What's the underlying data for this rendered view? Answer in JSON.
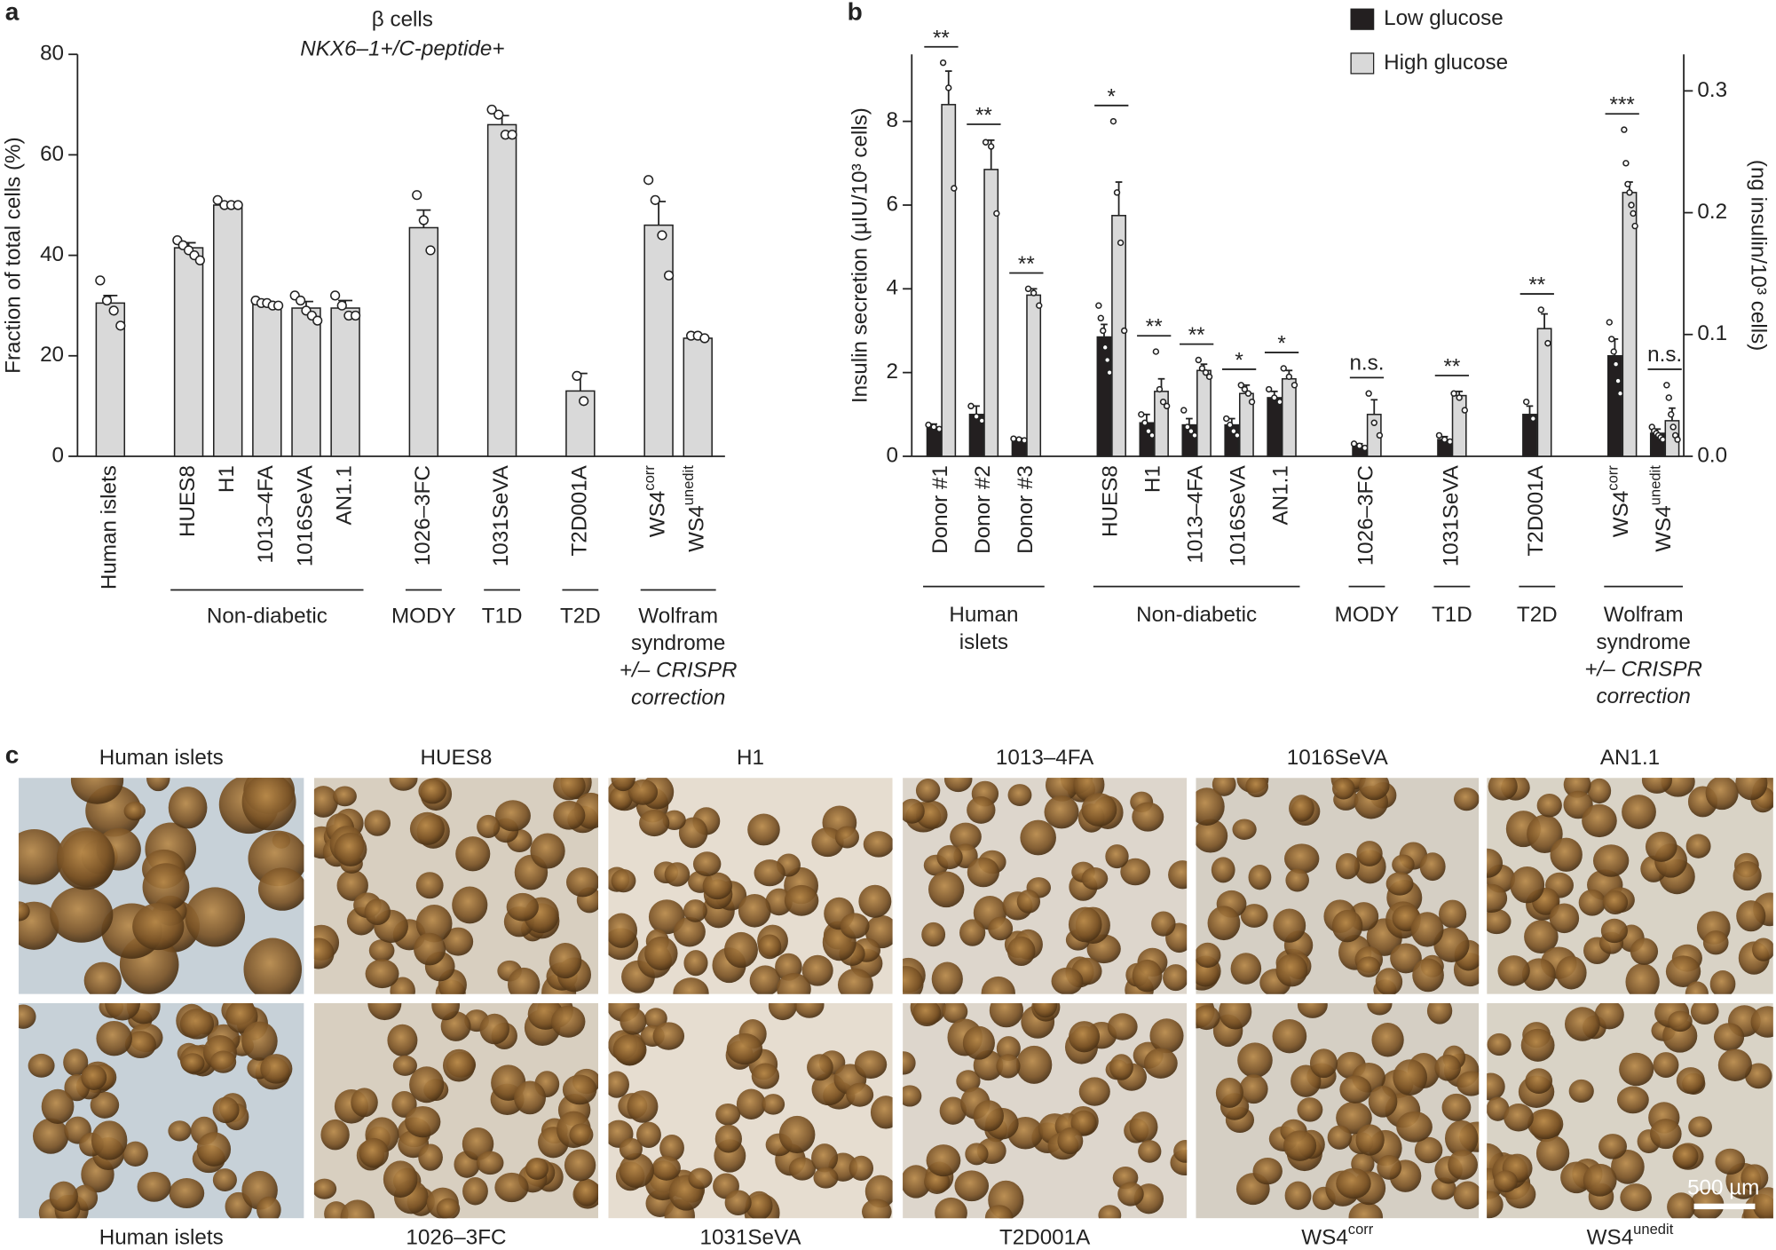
{
  "chart_data": [
    {
      "type": "bar",
      "panel": "a",
      "title": "β cells",
      "subtitle": "NKX6–1+/C-peptide+",
      "ylabel": "Fraction of total cells (%)",
      "categories": [
        "Human islets",
        null,
        "HUES8",
        "H1",
        "1013–4FA",
        "1016SeVA",
        "AN1.1",
        null,
        "1026–3FC",
        null,
        "1031SeVA",
        null,
        "T2D001A",
        null,
        "WS4",
        "WS4"
      ],
      "category_superscripts": [
        null,
        null,
        null,
        null,
        null,
        null,
        null,
        null,
        null,
        null,
        null,
        null,
        null,
        null,
        "corr",
        "unedit"
      ],
      "values": [
        30.5,
        null,
        41.5,
        50,
        30.5,
        29.5,
        29.5,
        null,
        45.5,
        null,
        66,
        null,
        13,
        null,
        46,
        23.5
      ],
      "errors": [
        1.5,
        null,
        1,
        0.5,
        0.3,
        1.3,
        1.5,
        null,
        3.5,
        null,
        1.8,
        null,
        3.5,
        null,
        4.7,
        0.4
      ],
      "points": [
        [
          35,
          31,
          29,
          26
        ],
        null,
        [
          43,
          42,
          41,
          40,
          39
        ],
        [
          51,
          50,
          50,
          50
        ],
        [
          31,
          30.5,
          30.5,
          30,
          30
        ],
        [
          32,
          31,
          29,
          28,
          27
        ],
        [
          32,
          30,
          28,
          28
        ],
        null,
        [
          52,
          47,
          41
        ],
        null,
        [
          69,
          68,
          64,
          64
        ],
        null,
        [
          16,
          11
        ],
        null,
        [
          55,
          51,
          44,
          36
        ],
        [
          24,
          24,
          23.5
        ]
      ],
      "color": "#d9d9d9",
      "groups": [
        {
          "members": [
            2,
            3,
            4,
            5,
            6
          ],
          "lines": [
            "Non-diabetic"
          ]
        },
        {
          "members": [
            8
          ],
          "lines": [
            "MODY"
          ]
        },
        {
          "members": [
            10
          ],
          "lines": [
            "T1D"
          ]
        },
        {
          "members": [
            12
          ],
          "lines": [
            "T2D"
          ]
        },
        {
          "members": [
            14,
            15
          ],
          "lines": [
            "Wolfram",
            "syndrome",
            "+/– CRISPR",
            "correction"
          ]
        }
      ],
      "ylim": [
        0,
        80
      ],
      "yticks": [
        0,
        20,
        40,
        60,
        80
      ]
    },
    {
      "type": "bar",
      "panel": "b",
      "ylabel": "Insulin secretion (µIU/10³ cells)",
      "y2label": "(ng insulin/10³ cells)",
      "categories": [
        "Donor #1",
        "Donor #2",
        "Donor #3",
        null,
        "HUES8",
        "H1",
        "1013–4FA",
        "1016SeVA",
        "AN1.1",
        null,
        "1026–3FC",
        null,
        "1031SeVA",
        null,
        "T2D001A",
        null,
        "WS4",
        "WS4"
      ],
      "category_superscripts": [
        null,
        null,
        null,
        null,
        null,
        null,
        null,
        null,
        null,
        null,
        null,
        null,
        null,
        null,
        null,
        null,
        "corr",
        "unedit"
      ],
      "series": [
        {
          "name": "Low glucose",
          "color": "#231f20",
          "values": [
            0.7,
            1.0,
            0.4,
            null,
            2.85,
            0.8,
            0.75,
            0.75,
            1.4,
            null,
            0.25,
            null,
            0.4,
            null,
            1.0,
            null,
            2.4,
            0.55
          ],
          "errors": [
            0.07,
            0.2,
            0.03,
            null,
            0.3,
            0.2,
            0.15,
            0.15,
            0.15,
            null,
            0.05,
            null,
            0.07,
            null,
            0.2,
            null,
            0.4,
            0.1
          ],
          "points": [
            [
              0.75,
              0.7,
              0.65
            ],
            [
              1.2,
              0.95,
              0.85
            ],
            [
              0.42,
              0.4,
              0.38
            ],
            null,
            [
              3.6,
              3.3,
              3.0,
              2.6,
              2.3,
              2.0
            ],
            [
              1.0,
              0.8,
              0.6,
              0.5
            ],
            [
              1.1,
              0.7,
              0.6,
              0.5
            ],
            [
              0.9,
              0.75,
              0.6,
              0.5
            ],
            [
              1.6,
              1.4,
              1.3
            ],
            null,
            [
              0.3,
              0.25,
              0.2
            ],
            null,
            [
              0.5,
              0.4,
              0.35
            ],
            null,
            [
              1.3,
              0.9
            ],
            null,
            [
              3.2,
              2.8,
              2.5,
              2.2,
              1.8,
              1.5
            ],
            [
              0.7,
              0.6,
              0.55,
              0.5,
              0.45,
              0.4
            ]
          ]
        },
        {
          "name": "High glucose",
          "color": "#d9d9d9",
          "values": [
            8.4,
            6.85,
            3.85,
            null,
            5.75,
            1.55,
            2.05,
            1.5,
            1.85,
            null,
            1.0,
            null,
            1.45,
            null,
            3.05,
            null,
            6.3,
            0.85
          ],
          "errors": [
            0.8,
            0.7,
            0.15,
            null,
            0.8,
            0.3,
            0.15,
            0.2,
            0.2,
            null,
            0.35,
            null,
            0.1,
            null,
            0.35,
            null,
            0.25,
            0.3
          ],
          "points": [
            [
              9.4,
              8.8,
              6.4
            ],
            [
              7.5,
              7.4,
              5.8
            ],
            [
              4.0,
              3.9,
              3.6
            ],
            null,
            [
              8.0,
              6.3,
              5.1,
              3.0
            ],
            [
              2.5,
              1.6,
              1.3,
              1.2
            ],
            [
              2.3,
              2.1,
              2.0,
              1.9
            ],
            [
              1.7,
              1.6,
              1.5,
              1.3
            ],
            [
              2.1,
              1.9,
              1.7
            ],
            null,
            [
              1.5,
              0.8,
              0.5
            ],
            null,
            [
              1.5,
              1.4,
              1.1
            ],
            null,
            [
              3.5,
              2.7
            ],
            null,
            [
              7.8,
              7.0,
              6.5,
              6.3,
              6.0,
              5.8,
              5.5
            ],
            [
              1.7,
              1.4,
              1.0,
              0.7,
              0.5,
              0.4
            ]
          ]
        }
      ],
      "significance": [
        "**",
        "**",
        "**",
        null,
        "*",
        "**",
        "**",
        "*",
        "*",
        null,
        "n.s.",
        null,
        "**",
        null,
        "**",
        null,
        "***",
        "n.s."
      ],
      "groups": [
        {
          "members": [
            0,
            1,
            2
          ],
          "lines": [
            "Human",
            "islets"
          ]
        },
        {
          "members": [
            4,
            5,
            6,
            7,
            8
          ],
          "lines": [
            "Non-diabetic"
          ]
        },
        {
          "members": [
            10
          ],
          "lines": [
            "MODY"
          ]
        },
        {
          "members": [
            12
          ],
          "lines": [
            "T1D"
          ]
        },
        {
          "members": [
            14
          ],
          "lines": [
            "T2D"
          ]
        },
        {
          "members": [
            16,
            17
          ],
          "lines": [
            "Wolfram",
            "syndrome",
            "+/– CRISPR",
            "correction"
          ]
        }
      ],
      "legend": "top",
      "ylim": [
        0,
        9.6
      ],
      "yticks": [
        0,
        2,
        4,
        6,
        8
      ],
      "y2lim": [
        0,
        0.33
      ],
      "y2ticks": [
        {
          "value": 0,
          "label": "0.0"
        },
        {
          "value": 0.1,
          "label": "0.1"
        },
        {
          "value": 0.2,
          "label": "0.2"
        },
        {
          "value": 0.3,
          "label": "0.3"
        }
      ]
    }
  ],
  "images": {
    "panel": "c",
    "top_labels": [
      "Human islets",
      "HUES8",
      "H1",
      "1013–4FA",
      "1016SeVA",
      "AN1.1"
    ],
    "bottom_labels": [
      "Human islets",
      "1026–3FC",
      "1031SeVA",
      "T2D001A",
      "WS4",
      "WS4"
    ],
    "bottom_superscripts": [
      null,
      null,
      null,
      null,
      "corr",
      "unedit"
    ],
    "scale_bar": "500 µm"
  }
}
